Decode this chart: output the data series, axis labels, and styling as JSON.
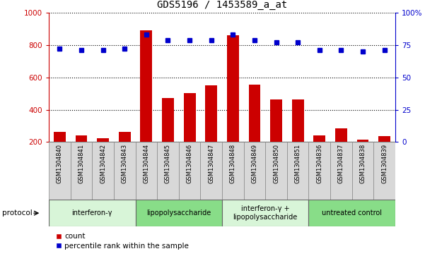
{
  "title": "GDS5196 / 1453589_a_at",
  "samples": [
    "GSM1304840",
    "GSM1304841",
    "GSM1304842",
    "GSM1304843",
    "GSM1304844",
    "GSM1304845",
    "GSM1304846",
    "GSM1304847",
    "GSM1304848",
    "GSM1304849",
    "GSM1304850",
    "GSM1304851",
    "GSM1304836",
    "GSM1304837",
    "GSM1304838",
    "GSM1304839"
  ],
  "counts": [
    262,
    243,
    225,
    262,
    893,
    472,
    502,
    549,
    862,
    554,
    462,
    462,
    242,
    285,
    215,
    236
  ],
  "percentiles": [
    72,
    71,
    71,
    72,
    83,
    79,
    79,
    79,
    83,
    79,
    77,
    77,
    71,
    71,
    70,
    71
  ],
  "groups": [
    {
      "label": "interferon-γ",
      "start": 0,
      "end": 4,
      "color": "#d8f5d8"
    },
    {
      "label": "lipopolysaccharide",
      "start": 4,
      "end": 8,
      "color": "#88dd88"
    },
    {
      "label": "interferon-γ +\nlipopolysaccharide",
      "start": 8,
      "end": 12,
      "color": "#d8f5d8"
    },
    {
      "label": "untreated control",
      "start": 12,
      "end": 16,
      "color": "#88dd88"
    }
  ],
  "ylim_left": [
    200,
    1000
  ],
  "ylim_right": [
    0,
    100
  ],
  "bar_color": "#cc0000",
  "dot_color": "#0000cc",
  "bar_width": 0.55,
  "grid_color": "#000000",
  "bg_color": "#ffffff",
  "tick_color_left": "#cc0000",
  "tick_color_right": "#0000cc",
  "title_fontsize": 10,
  "protocol_label": "protocol",
  "legend_count_label": "count",
  "legend_pct_label": "percentile rank within the sample",
  "left_ticks": [
    200,
    400,
    600,
    800,
    1000
  ],
  "right_ticks": [
    0,
    25,
    50,
    75,
    100
  ],
  "right_tick_labels": [
    "0",
    "25",
    "50",
    "75",
    "100%"
  ]
}
